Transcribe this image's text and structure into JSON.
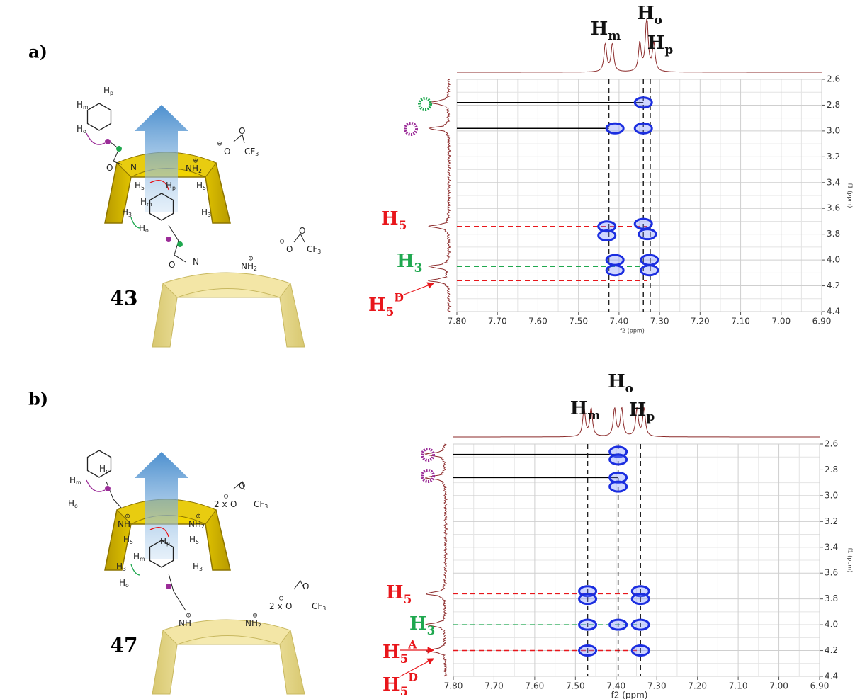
{
  "panels": [
    {
      "label": "a)",
      "compound": "43",
      "diagram_labels": [
        {
          "t": "H",
          "s": "p"
        },
        {
          "t": "H",
          "s": "m"
        },
        {
          "t": "H",
          "s": "o"
        },
        {
          "t": "O"
        },
        {
          "t": "N"
        },
        {
          "t": "NH",
          "s": "2",
          "c": "⊕"
        },
        {
          "t": "O"
        },
        {
          "t": "O",
          "c": "⊖"
        },
        {
          "t": "CF",
          "s": "3"
        },
        {
          "t": "H",
          "s": "5"
        },
        {
          "t": "H",
          "s": "p"
        },
        {
          "t": "H",
          "s": "5"
        },
        {
          "t": "H",
          "s": "m"
        },
        {
          "t": "H",
          "s": "3"
        },
        {
          "t": "H",
          "s": "3"
        },
        {
          "t": "H",
          "s": "o"
        },
        {
          "t": "O"
        },
        {
          "t": "O",
          "c": "⊖"
        },
        {
          "t": "CF",
          "s": "3"
        },
        {
          "t": "O"
        },
        {
          "t": "N"
        },
        {
          "t": "NH",
          "s": "2",
          "c": "⊕"
        }
      ],
      "peak_labels": [
        {
          "t": "H",
          "s": "m"
        },
        {
          "t": "H",
          "s": "o"
        },
        {
          "t": "H",
          "s": "p"
        }
      ],
      "side_labels": [
        {
          "t": "H",
          "s": "5",
          "color": "#e8161b"
        },
        {
          "t": "H",
          "s": "3",
          "color": "#1fa84f"
        },
        {
          "t": "H",
          "s": "5",
          "u": "D",
          "color": "#e8161b"
        }
      ],
      "spectrum": {
        "x_label": "f2 (ppm)",
        "y_label": "f1 (ppm)",
        "xlim": [
          7.8,
          6.9
        ],
        "ylim": [
          2.6,
          4.4
        ],
        "xticks": [
          {
            "value": 7.8,
            "label": "7.80"
          },
          {
            "value": 7.7,
            "label": "7.70"
          },
          {
            "value": 7.6,
            "label": "7.60"
          },
          {
            "value": 7.5,
            "label": "7.50"
          },
          {
            "value": 7.4,
            "label": "7.40"
          },
          {
            "value": 7.3,
            "label": "7.30"
          },
          {
            "value": 7.2,
            "label": "7.20"
          },
          {
            "value": 7.1,
            "label": "7.10"
          },
          {
            "value": 7,
            "label": "7.00"
          },
          {
            "value": 6.9,
            "label": "6.90"
          }
        ],
        "yticks": [
          2.6,
          2.8,
          {
            "value": 3,
            "label": "3.0"
          },
          3.2,
          3.4,
          3.6,
          3.8,
          {
            "value": 4,
            "label": "4.0"
          },
          4.2,
          4.4
        ],
        "v_lines": [
          7.425,
          7.34,
          7.323
        ],
        "h_lines": [
          {
            "y": 2.78,
            "x_end": 7.34,
            "color": "#000000",
            "dashed": false
          },
          {
            "y": 2.98,
            "x_end": 7.425,
            "color": "#000000",
            "dashed": false
          },
          {
            "y": 3.74,
            "x_end": 7.33,
            "color": "#e8161b",
            "dashed": true
          },
          {
            "y": 4.05,
            "x_end": 7.33,
            "color": "#1fa84f",
            "dashed": true
          },
          {
            "y": 4.16,
            "x_end": 7.33,
            "color": "#e8161b",
            "dashed": true
          }
        ],
        "peaks": [
          [
            7.34,
            2.78
          ],
          [
            7.34,
            2.98
          ],
          [
            7.41,
            2.98
          ],
          [
            7.43,
            3.74
          ],
          [
            7.43,
            3.81
          ],
          [
            7.34,
            3.72
          ],
          [
            7.33,
            3.8
          ],
          [
            7.41,
            4.0
          ],
          [
            7.41,
            4.08
          ],
          [
            7.325,
            4.0
          ],
          [
            7.325,
            4.08
          ]
        ],
        "color": "#1b2ee0"
      }
    },
    {
      "label": "b)",
      "compound": "47",
      "diagram_labels": [
        {
          "t": "H",
          "s": "p"
        },
        {
          "t": "H",
          "s": "m"
        },
        {
          "t": "H",
          "s": "o"
        },
        {
          "t": "NH",
          "c": "⊕"
        },
        {
          "t": "NH",
          "s": "2",
          "c": "⊕"
        },
        {
          "t": "2 x"
        },
        {
          "t": "O",
          "c": "⊖"
        },
        {
          "t": "O"
        },
        {
          "t": "CF",
          "s": "3"
        },
        {
          "t": "H",
          "s": "5"
        },
        {
          "t": "H",
          "s": "p"
        },
        {
          "t": "H",
          "s": "5"
        },
        {
          "t": "H",
          "s": "m"
        },
        {
          "t": "H",
          "s": "3"
        },
        {
          "t": "H",
          "s": "3"
        },
        {
          "t": "H",
          "s": "o"
        },
        {
          "t": "O"
        },
        {
          "t": "2 x"
        },
        {
          "t": "O",
          "c": "⊖"
        },
        {
          "t": "CF",
          "s": "3"
        },
        {
          "t": "NH",
          "c": "⊕"
        },
        {
          "t": "NH",
          "s": "2",
          "c": "⊕"
        }
      ],
      "peak_labels": [
        {
          "t": "H",
          "s": "m"
        },
        {
          "t": "H",
          "s": "o"
        },
        {
          "t": "H",
          "s": "p"
        }
      ],
      "side_labels": [
        {
          "t": "H",
          "s": "5",
          "color": "#e8161b"
        },
        {
          "t": "H",
          "s": "3",
          "color": "#1fa84f"
        },
        {
          "t": "H",
          "s": "5",
          "u": "A",
          "color": "#e8161b"
        },
        {
          "t": "H",
          "s": "5",
          "u": "D",
          "color": "#e8161b"
        }
      ],
      "spectrum": {
        "x_label": "f2 (ppm)",
        "y_label": "f1 (ppm)",
        "xlim": [
          7.8,
          6.9
        ],
        "ylim": [
          2.6,
          4.4
        ],
        "xticks": [
          {
            "value": 7.8,
            "label": "7.80"
          },
          {
            "value": 7.7,
            "label": "7.70"
          },
          {
            "value": 7.6,
            "label": "7.60"
          },
          {
            "value": 7.5,
            "label": "7.50"
          },
          {
            "value": 7.4,
            "label": "7.40"
          },
          {
            "value": 7.3,
            "label": "7.30"
          },
          {
            "value": 7.2,
            "label": "7.20"
          },
          {
            "value": 7.1,
            "label": "7.10"
          },
          {
            "value": 7,
            "label": "7.00"
          },
          {
            "value": 6.9,
            "label": "6.90"
          }
        ],
        "yticks": [
          2.6,
          2.8,
          {
            "value": 3,
            "label": "3.0"
          },
          3.2,
          3.4,
          3.6,
          3.8,
          {
            "value": 4,
            "label": "4.0"
          },
          4.2,
          4.4
        ],
        "v_lines": [
          7.47,
          7.395,
          7.34
        ],
        "h_lines": [
          {
            "y": 2.68,
            "x_end": 7.395,
            "color": "#000000",
            "dashed": false
          },
          {
            "y": 2.86,
            "x_end": 7.395,
            "color": "#000000",
            "dashed": false
          },
          {
            "y": 3.76,
            "x_end": 7.34,
            "color": "#e8161b",
            "dashed": true
          },
          {
            "y": 4.0,
            "x_end": 7.34,
            "color": "#1fa84f",
            "dashed": true
          },
          {
            "y": 4.2,
            "x_end": 7.34,
            "color": "#e8161b",
            "dashed": true
          }
        ],
        "peaks": [
          [
            7.395,
            2.66
          ],
          [
            7.395,
            2.72
          ],
          [
            7.395,
            2.86
          ],
          [
            7.395,
            2.93
          ],
          [
            7.47,
            3.74
          ],
          [
            7.47,
            3.8
          ],
          [
            7.34,
            3.74
          ],
          [
            7.34,
            3.8
          ],
          [
            7.47,
            4.0
          ],
          [
            7.395,
            4.0
          ],
          [
            7.34,
            4.0
          ],
          [
            7.47,
            4.2
          ],
          [
            7.34,
            4.2
          ]
        ],
        "color": "#1b2ee0"
      }
    }
  ]
}
